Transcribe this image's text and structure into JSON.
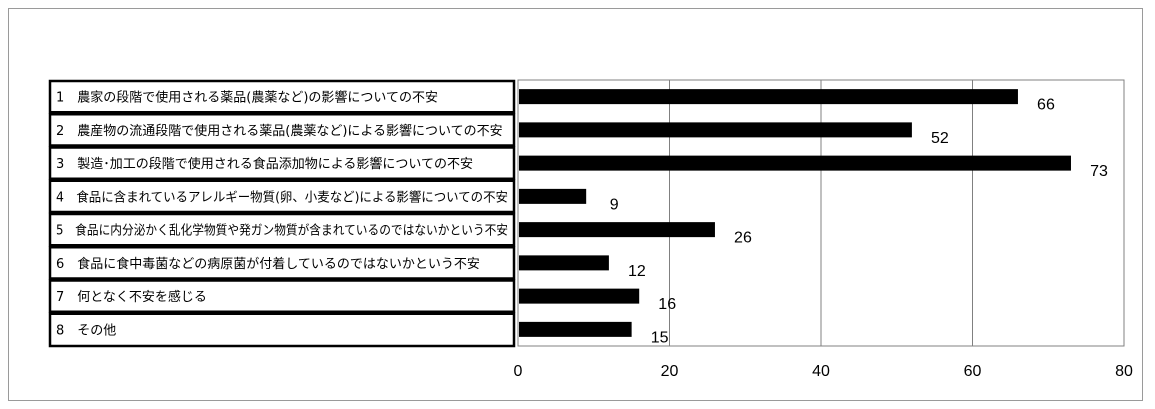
{
  "chart_data": {
    "type": "bar",
    "orientation": "horizontal",
    "categories": [
      "1　農家の段階で使用される薬品(農薬など)の影響についての不安",
      "2　農産物の流通段階で使用される薬品(農薬など)による影響についての不安",
      "3　製造･加工の段階で使用される食品添加物による影響についての不安",
      "4　食品に含まれているアレルギー物質(卵、小麦など)による影響についての不安",
      "5　食品に内分泌かく乱化学物質や発ガン物質が含まれているのではないかという不安",
      "6　食品に食中毒菌などの病原菌が付着しているのではないかという不安",
      "7　何となく不安を感じる",
      "8　その他"
    ],
    "values": [
      66,
      52,
      73,
      9,
      26,
      12,
      16,
      15
    ],
    "xlim": [
      0,
      80
    ],
    "xticks": [
      0,
      20,
      40,
      60,
      80
    ],
    "title": "",
    "xlabel": "",
    "ylabel": "",
    "grid": "vertical",
    "legend": "none",
    "colors": {
      "bar": "#000000",
      "grid": "#808080",
      "plot_border": "#808080",
      "label_border": "#000000",
      "frame_border": "#9a9a9a"
    }
  }
}
